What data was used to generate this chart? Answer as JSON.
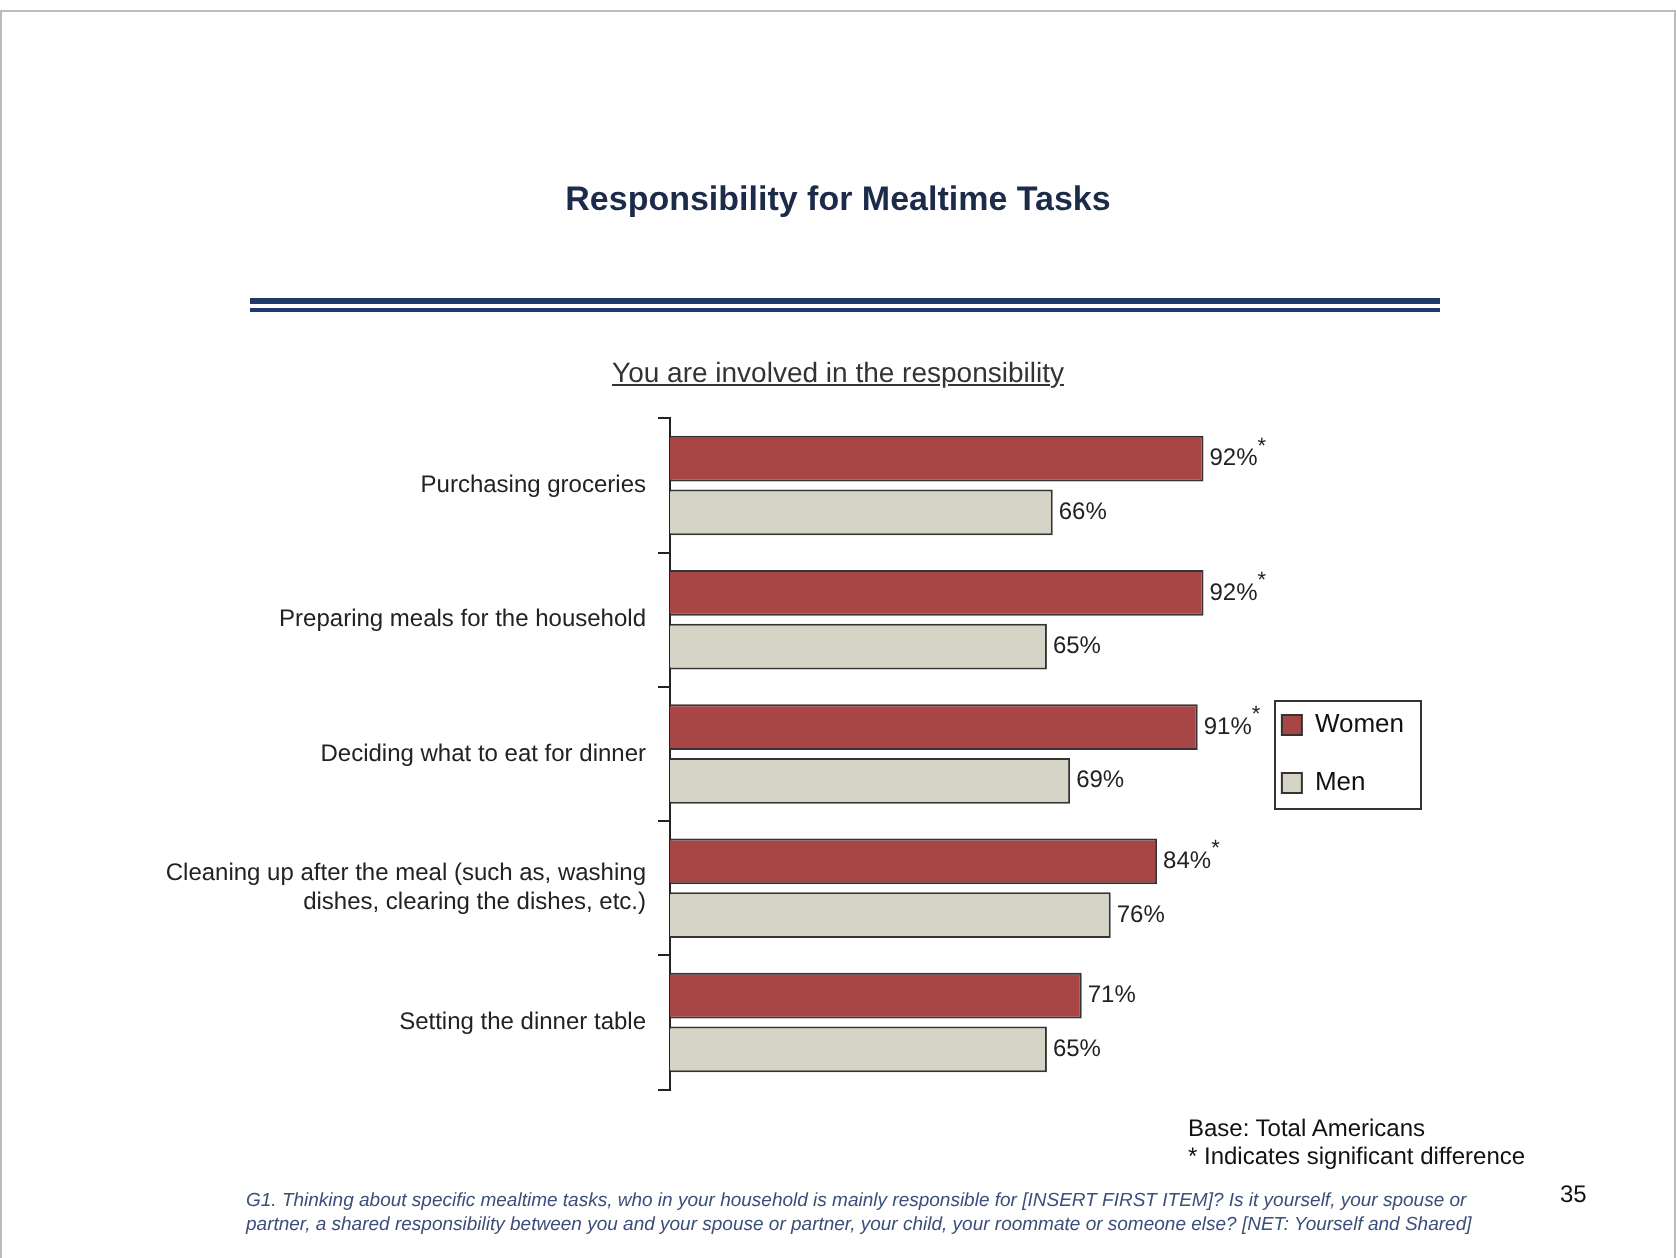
{
  "chart_data": {
    "type": "bar",
    "orientation": "horizontal",
    "title": "Responsibility for Mealtime Tasks",
    "subtitle": "You are involved in the responsibility",
    "categories": [
      "Purchasing groceries",
      "Preparing meals for the household",
      "Deciding what to eat for dinner",
      "Cleaning up after the meal (such as, washing dishes, clearing the dishes, etc.)",
      "Setting the dinner table"
    ],
    "series": [
      {
        "name": "Women",
        "color": "#a84646",
        "values": [
          92,
          92,
          91,
          84,
          71
        ],
        "value_labels": [
          "92%$^{*}$",
          "92%$^{*}$",
          "91%$^{*}$",
          "84%$^{*}$",
          "71%"
        ]
      },
      {
        "name": "Men",
        "color": "#d6d4c6",
        "values": [
          66,
          65,
          69,
          76,
          65
        ],
        "value_labels": [
          "66%",
          "65%",
          "69%",
          "76%",
          "65%"
        ]
      }
    ],
    "legend": "right",
    "tick_labels": "y",
    "annotations": [
      "Base: Total Americans",
      "* Indicates significant difference",
      "G1. Thinking about specific mealtime tasks, who in your household is mainly responsible for [INSERT FIRST ITEM]? Is it yourself, your spouse or partner, a shared responsibility between you and your spouse or partner, your child, your roommate or  someone else? [NET: Yourself and Shared]",
      "35"
    ]
  }
}
